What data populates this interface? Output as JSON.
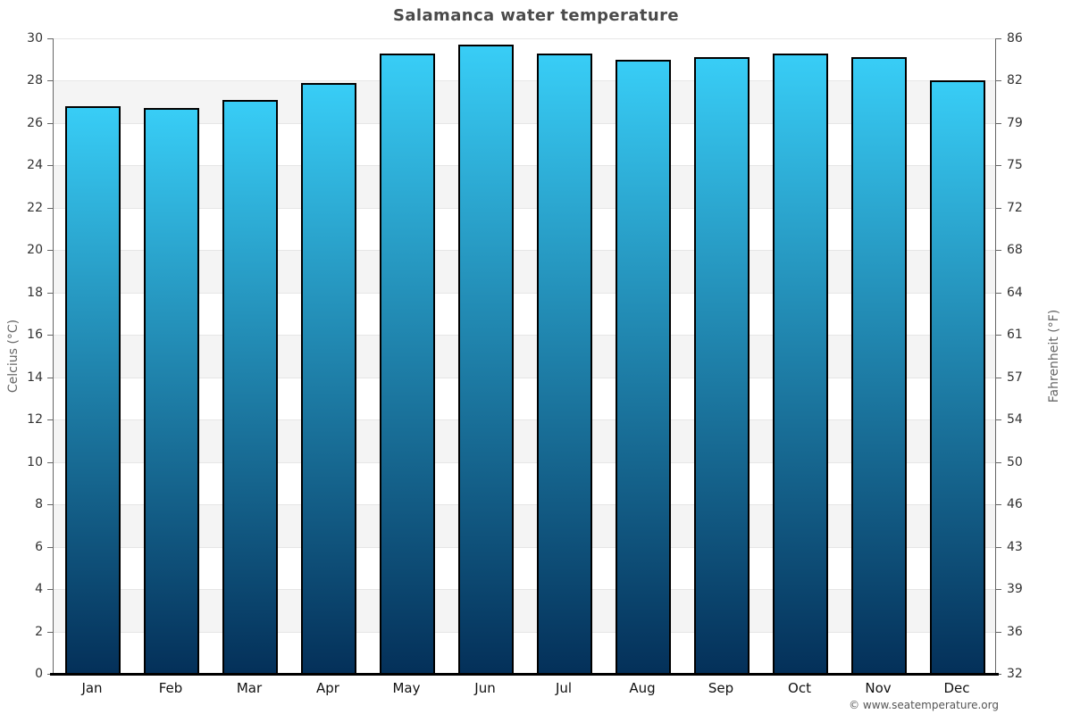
{
  "title": "Salamanca water temperature",
  "attribution": "© www.seatemperature.org",
  "chart_data": {
    "type": "bar",
    "title": "Salamanca water temperature",
    "categories": [
      "Jan",
      "Feb",
      "Mar",
      "Apr",
      "May",
      "Jun",
      "Jul",
      "Aug",
      "Sep",
      "Oct",
      "Nov",
      "Dec"
    ],
    "values": [
      26.8,
      26.7,
      27.1,
      27.9,
      29.3,
      29.7,
      29.3,
      29.0,
      29.1,
      29.3,
      29.1,
      28.0
    ],
    "unit": "°C",
    "xlabel": "",
    "ylabel_left": "Celcius (°C)",
    "ylabel_right": "Fahrenheit (°F)",
    "ylim_celsius": [
      0,
      30
    ],
    "ylim_fahrenheit": [
      32,
      86
    ],
    "celsius_ticks": [
      0,
      2,
      4,
      6,
      8,
      10,
      12,
      14,
      16,
      18,
      20,
      22,
      24,
      26,
      28,
      30
    ],
    "fahrenheit_ticks": [
      32,
      36,
      39,
      43,
      46,
      50,
      54,
      57,
      61,
      64,
      68,
      72,
      75,
      79,
      82,
      86
    ],
    "grid": "horizontal gridlines every 2°C with alternating shaded bands",
    "legend": "none",
    "colors": {
      "bar_gradient_top": "#38cdf6",
      "bar_gradient_bottom": "#043059",
      "bar_border": "#000000",
      "band_fill": "#f4f4f4",
      "gridline": "#e6e6e6",
      "axis_line": "#666666",
      "baseline": "#000000",
      "title_text": "#4a4a4a",
      "tick_text": "#333333",
      "axis_title_text": "#666666",
      "attribution_text": "#555555"
    }
  }
}
